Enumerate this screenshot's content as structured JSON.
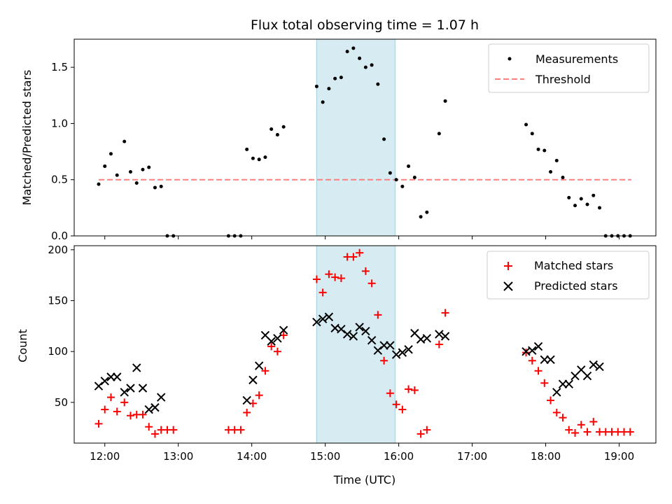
{
  "chart_data": [
    {
      "type": "scatter",
      "title": "Flux total observing time = 1.07 h",
      "xlabel": "",
      "ylabel": "Matched/Predicted stars",
      "ylim": [
        0,
        1.75
      ],
      "yticks": [
        "0.0",
        "0.5",
        "1.0",
        "1.5"
      ],
      "grid": false,
      "legend_position": "top-right",
      "shaded_interval": {
        "start": "14:53",
        "end": "15:57",
        "color": "#add8e6"
      },
      "threshold": {
        "name": "Threshold",
        "value": 0.5,
        "x_range": [
          "11:55",
          "19:10"
        ],
        "color": "#ff7f7f"
      },
      "series": [
        {
          "name": "Measurements",
          "color": "#000000",
          "marker": "dot",
          "points": [
            [
              "11:55",
              0.46
            ],
            [
              "12:00",
              0.62
            ],
            [
              "12:05",
              0.73
            ],
            [
              "12:10",
              0.54
            ],
            [
              "12:16",
              0.84
            ],
            [
              "12:21",
              0.57
            ],
            [
              "12:26",
              0.47
            ],
            [
              "12:31",
              0.59
            ],
            [
              "12:36",
              0.61
            ],
            [
              "12:41",
              0.43
            ],
            [
              "12:46",
              0.44
            ],
            [
              "12:51",
              0.0
            ],
            [
              "12:56",
              0.0
            ],
            [
              "13:41",
              0.0
            ],
            [
              "13:46",
              0.0
            ],
            [
              "13:51",
              0.0
            ],
            [
              "13:56",
              0.77
            ],
            [
              "14:01",
              0.69
            ],
            [
              "14:06",
              0.68
            ],
            [
              "14:11",
              0.7
            ],
            [
              "14:16",
              0.95
            ],
            [
              "14:21",
              0.9
            ],
            [
              "14:26",
              0.97
            ],
            [
              "14:53",
              1.33
            ],
            [
              "14:58",
              1.19
            ],
            [
              "15:03",
              1.31
            ],
            [
              "15:08",
              1.4
            ],
            [
              "15:13",
              1.41
            ],
            [
              "15:18",
              1.64
            ],
            [
              "15:23",
              1.67
            ],
            [
              "15:28",
              1.58
            ],
            [
              "15:33",
              1.5
            ],
            [
              "15:38",
              1.52
            ],
            [
              "15:43",
              1.35
            ],
            [
              "15:48",
              0.86
            ],
            [
              "15:53",
              0.56
            ],
            [
              "15:58",
              0.5
            ],
            [
              "16:03",
              0.44
            ],
            [
              "16:08",
              0.62
            ],
            [
              "16:13",
              0.52
            ],
            [
              "16:18",
              0.17
            ],
            [
              "16:23",
              0.21
            ],
            [
              "16:33",
              0.91
            ],
            [
              "16:38",
              1.2
            ],
            [
              "17:44",
              0.99
            ],
            [
              "17:49",
              0.91
            ],
            [
              "17:54",
              0.77
            ],
            [
              "17:59",
              0.76
            ],
            [
              "18:04",
              0.57
            ],
            [
              "18:09",
              0.67
            ],
            [
              "18:14",
              0.52
            ],
            [
              "18:19",
              0.34
            ],
            [
              "18:24",
              0.27
            ],
            [
              "18:29",
              0.33
            ],
            [
              "18:34",
              0.28
            ],
            [
              "18:39",
              0.36
            ],
            [
              "18:44",
              0.25
            ],
            [
              "18:49",
              0.0
            ],
            [
              "18:54",
              0.0
            ],
            [
              "18:59",
              0.0
            ],
            [
              "19:04",
              0.0
            ],
            [
              "19:09",
              0.0
            ]
          ]
        }
      ]
    },
    {
      "type": "scatter",
      "title": "",
      "xlabel": "Time (UTC)",
      "ylabel": "Count",
      "xticks": [
        "12:00",
        "13:00",
        "14:00",
        "15:00",
        "16:00",
        "17:00",
        "18:00",
        "19:00"
      ],
      "yticks": [
        "50",
        "100",
        "150",
        "200"
      ],
      "ylim": [
        10,
        204
      ],
      "grid": false,
      "legend_position": "top-right",
      "shaded_interval": {
        "start": "14:53",
        "end": "15:57",
        "color": "#add8e6"
      },
      "series": [
        {
          "name": "Matched stars",
          "color": "#ff0000",
          "marker": "plus",
          "points": [
            [
              "11:55",
              29
            ],
            [
              "12:00",
              43
            ],
            [
              "12:05",
              55
            ],
            [
              "12:10",
              41
            ],
            [
              "12:16",
              50
            ],
            [
              "12:21",
              37
            ],
            [
              "12:26",
              38
            ],
            [
              "12:31",
              38
            ],
            [
              "12:36",
              26
            ],
            [
              "12:41",
              19
            ],
            [
              "12:46",
              23
            ],
            [
              "12:51",
              23
            ],
            [
              "12:56",
              23
            ],
            [
              "13:41",
              23
            ],
            [
              "13:46",
              23
            ],
            [
              "13:51",
              23
            ],
            [
              "13:56",
              40
            ],
            [
              "14:01",
              49
            ],
            [
              "14:06",
              57
            ],
            [
              "14:11",
              81
            ],
            [
              "14:16",
              105
            ],
            [
              "14:21",
              100
            ],
            [
              "14:26",
              116
            ],
            [
              "14:53",
              171
            ],
            [
              "14:58",
              158
            ],
            [
              "15:03",
              176
            ],
            [
              "15:08",
              173
            ],
            [
              "15:13",
              172
            ],
            [
              "15:18",
              193
            ],
            [
              "15:23",
              193
            ],
            [
              "15:28",
              197
            ],
            [
              "15:33",
              179
            ],
            [
              "15:38",
              167
            ],
            [
              "15:43",
              136
            ],
            [
              "15:48",
              91
            ],
            [
              "15:53",
              59
            ],
            [
              "15:58",
              48
            ],
            [
              "16:03",
              43
            ],
            [
              "16:08",
              63
            ],
            [
              "16:13",
              62
            ],
            [
              "16:18",
              19
            ],
            [
              "16:23",
              23
            ],
            [
              "16:33",
              107
            ],
            [
              "16:38",
              138
            ],
            [
              "17:44",
              99
            ],
            [
              "17:49",
              91
            ],
            [
              "17:54",
              81
            ],
            [
              "17:59",
              69
            ],
            [
              "18:04",
              52
            ],
            [
              "18:09",
              40
            ],
            [
              "18:14",
              35
            ],
            [
              "18:19",
              23
            ],
            [
              "18:24",
              20
            ],
            [
              "18:29",
              28
            ],
            [
              "18:34",
              21
            ],
            [
              "18:39",
              31
            ],
            [
              "18:44",
              21
            ],
            [
              "18:49",
              21
            ],
            [
              "18:54",
              21
            ],
            [
              "18:59",
              21
            ],
            [
              "19:04",
              21
            ],
            [
              "19:09",
              21
            ]
          ]
        },
        {
          "name": "Predicted stars",
          "color": "#000000",
          "marker": "x",
          "points": [
            [
              "11:55",
              66
            ],
            [
              "12:00",
              71
            ],
            [
              "12:05",
              75
            ],
            [
              "12:10",
              75
            ],
            [
              "12:16",
              60
            ],
            [
              "12:21",
              64
            ],
            [
              "12:26",
              84
            ],
            [
              "12:31",
              64
            ],
            [
              "12:36",
              43
            ],
            [
              "12:41",
              45
            ],
            [
              "12:46",
              55
            ],
            [
              "13:56",
              52
            ],
            [
              "14:01",
              72
            ],
            [
              "14:06",
              86
            ],
            [
              "14:11",
              116
            ],
            [
              "14:16",
              110
            ],
            [
              "14:21",
              113
            ],
            [
              "14:26",
              121
            ],
            [
              "14:53",
              129
            ],
            [
              "14:58",
              132
            ],
            [
              "15:03",
              134
            ],
            [
              "15:08",
              123
            ],
            [
              "15:13",
              122
            ],
            [
              "15:18",
              117
            ],
            [
              "15:23",
              115
            ],
            [
              "15:28",
              124
            ],
            [
              "15:33",
              120
            ],
            [
              "15:38",
              111
            ],
            [
              "15:43",
              101
            ],
            [
              "15:48",
              106
            ],
            [
              "15:53",
              106
            ],
            [
              "15:58",
              97
            ],
            [
              "16:03",
              99
            ],
            [
              "16:08",
              102
            ],
            [
              "16:13",
              118
            ],
            [
              "16:18",
              112
            ],
            [
              "16:23",
              113
            ],
            [
              "16:33",
              117
            ],
            [
              "16:38",
              115
            ],
            [
              "17:44",
              100
            ],
            [
              "17:49",
              101
            ],
            [
              "17:54",
              105
            ],
            [
              "17:59",
              92
            ],
            [
              "18:04",
              92
            ],
            [
              "18:09",
              60
            ],
            [
              "18:14",
              68
            ],
            [
              "18:19",
              68
            ],
            [
              "18:24",
              76
            ],
            [
              "18:29",
              82
            ],
            [
              "18:34",
              76
            ],
            [
              "18:39",
              87
            ],
            [
              "18:44",
              85
            ]
          ]
        }
      ]
    }
  ]
}
